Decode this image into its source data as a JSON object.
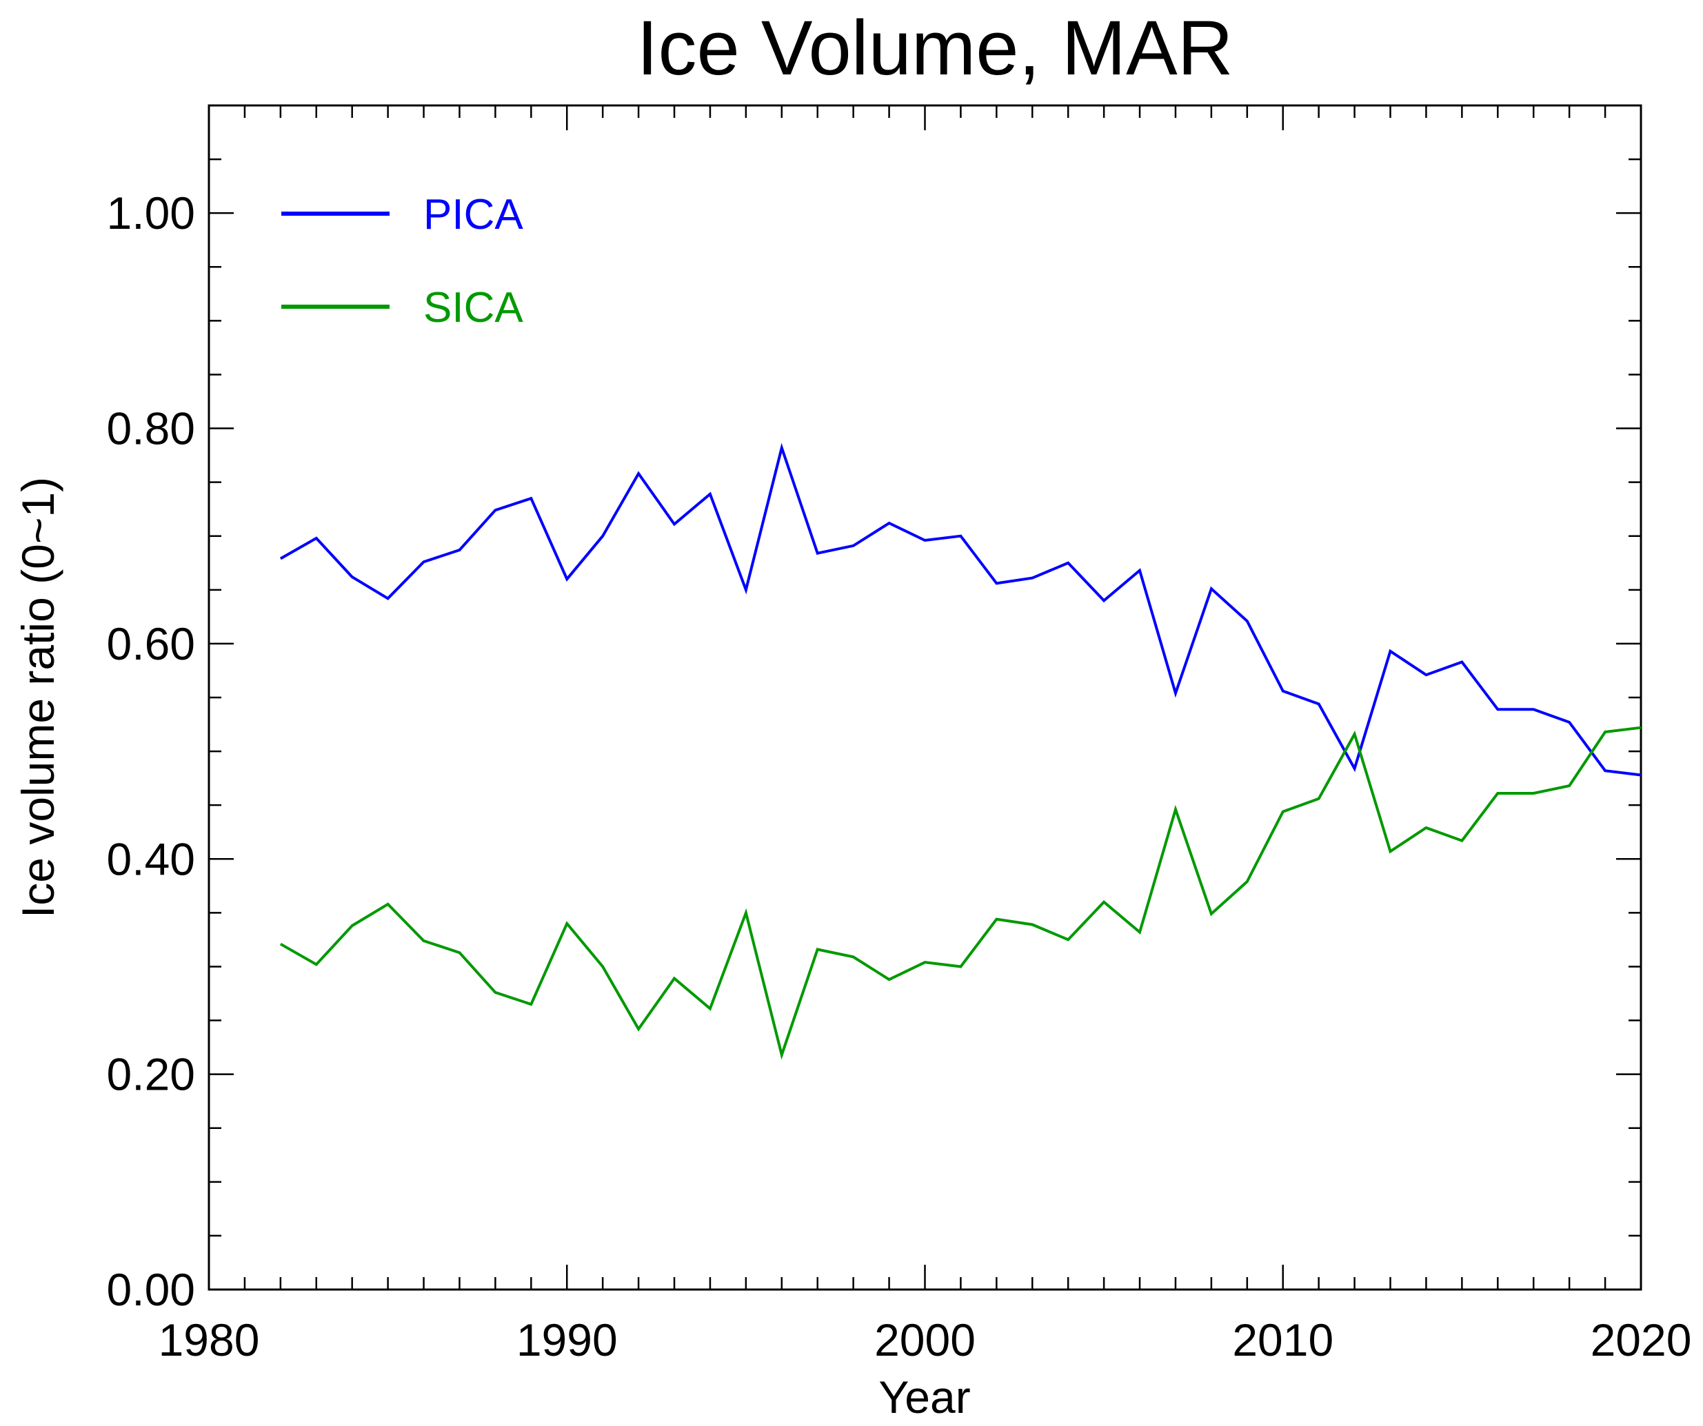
{
  "chart_data": {
    "type": "line",
    "title": "Ice Volume, MAR",
    "xlabel": "Year",
    "ylabel": "Ice volume ratio (0~1)",
    "xlim": [
      1980,
      2020
    ],
    "ylim": [
      0,
      1.1
    ],
    "xticks": [
      "1980",
      "1990",
      "2000",
      "2010",
      "2020"
    ],
    "yticks": [
      "0.00",
      "0.20",
      "0.40",
      "0.60",
      "0.80",
      "1.00"
    ],
    "legend_position": "top-left",
    "grid": false,
    "x": [
      1982,
      1983,
      1984,
      1985,
      1986,
      1987,
      1988,
      1989,
      1990,
      1991,
      1992,
      1993,
      1994,
      1995,
      1996,
      1997,
      1998,
      1999,
      2000,
      2001,
      2002,
      2003,
      2004,
      2005,
      2006,
      2007,
      2008,
      2009,
      2010,
      2011,
      2012,
      2013,
      2014,
      2015,
      2016,
      2017,
      2018,
      2019,
      2020
    ],
    "series": [
      {
        "name": "PICA",
        "color": "#0000ff",
        "values": [
          0.679,
          0.698,
          0.662,
          0.642,
          0.676,
          0.687,
          0.724,
          0.735,
          0.66,
          0.7,
          0.758,
          0.711,
          0.739,
          0.65,
          0.782,
          0.684,
          0.691,
          0.712,
          0.696,
          0.7,
          0.656,
          0.661,
          0.675,
          0.64,
          0.668,
          0.554,
          0.651,
          0.621,
          0.556,
          0.544,
          0.484,
          0.593,
          0.571,
          0.583,
          0.539,
          0.539,
          0.527,
          0.482,
          0.478
        ]
      },
      {
        "name": "SICA",
        "color": "#009900",
        "values": [
          0.321,
          0.302,
          0.338,
          0.358,
          0.324,
          0.313,
          0.276,
          0.265,
          0.34,
          0.3,
          0.242,
          0.289,
          0.261,
          0.35,
          0.218,
          0.316,
          0.309,
          0.288,
          0.304,
          0.3,
          0.344,
          0.339,
          0.325,
          0.36,
          0.332,
          0.446,
          0.349,
          0.379,
          0.444,
          0.456,
          0.516,
          0.407,
          0.429,
          0.417,
          0.461,
          0.461,
          0.468,
          0.518,
          0.522
        ]
      }
    ]
  }
}
